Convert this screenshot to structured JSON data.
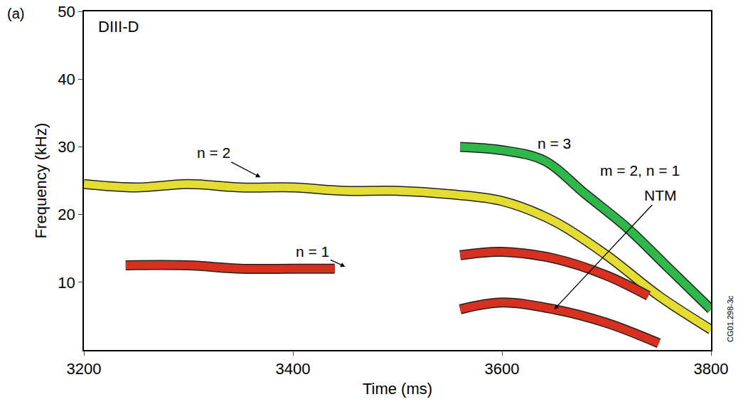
{
  "chart_data": {
    "type": "line",
    "panel_label": "(a)",
    "title": "DIII-D",
    "x_label": "Time (ms)",
    "y_label": "Frequency (kHz)",
    "watermark": "CG01.298-3c",
    "xlim": [
      3200,
      3800
    ],
    "xticks": [
      3200,
      3400,
      3600,
      3800
    ],
    "ylim": [
      0,
      50
    ],
    "yticks": [
      10,
      20,
      30,
      40,
      50
    ],
    "grid": false,
    "series": [
      {
        "name": "n = 2",
        "color": "#e4dc30",
        "line_style": "band",
        "x": [
          3200,
          3250,
          3300,
          3350,
          3400,
          3450,
          3500,
          3550,
          3600,
          3650,
          3700,
          3750,
          3800
        ],
        "values": [
          24.5,
          24,
          24.5,
          24,
          24,
          23.5,
          23.5,
          23,
          22,
          19,
          14,
          8,
          3
        ]
      },
      {
        "name": "n = 3",
        "color": "#2fb84a",
        "line_style": "band",
        "x": [
          3560,
          3600,
          3640,
          3680,
          3720,
          3760,
          3800
        ],
        "values": [
          30,
          29.5,
          28,
          23,
          18,
          12,
          6
        ]
      },
      {
        "name": "n = 1",
        "color": "#d8301e",
        "line_style": "band",
        "x": [
          3240,
          3300,
          3350,
          3400,
          3440,
          3500,
          3560,
          3600,
          3650,
          3700,
          3740
        ],
        "values": [
          12.5,
          12.5,
          12,
          12,
          12,
          null,
          14,
          14.5,
          13.5,
          11,
          8
        ]
      },
      {
        "name": "m = 2, n = 1",
        "color": "#d8301e",
        "line_style": "band",
        "x": [
          3560,
          3600,
          3650,
          3700,
          3750
        ],
        "values": [
          6,
          7,
          6,
          4,
          1
        ]
      }
    ],
    "annotations": [
      {
        "text": "n = 2",
        "x": 3324,
        "y": 29.1,
        "arrow_x": 3369,
        "arrow_y": 25.5
      },
      {
        "text": "n = 1",
        "x": 3419,
        "y": 14.5,
        "arrow_x": 3450,
        "arrow_y": 12.3
      },
      {
        "text": "n = 3",
        "x": 3650,
        "y": 30.5
      },
      {
        "text": "m = 2, n = 1",
        "x": 3732,
        "y": 26.5
      },
      {
        "text": "NTM",
        "x": 3752,
        "y": 22.8,
        "arrow_x": 3650,
        "arrow_y": 6
      }
    ]
  }
}
